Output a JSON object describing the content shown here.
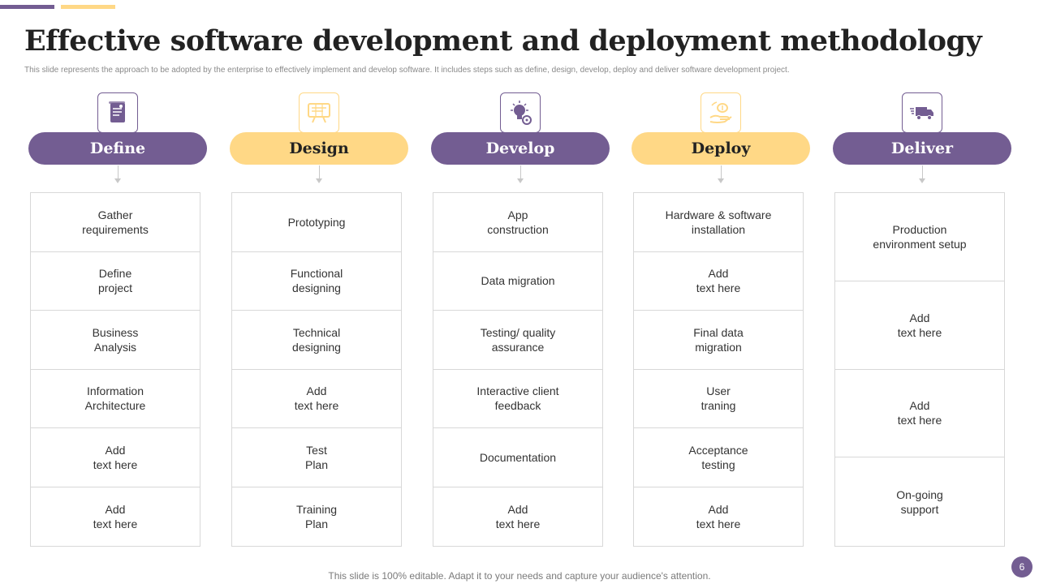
{
  "title": "Effective software development and deployment methodology",
  "subtitle": "This slide represents the approach to be adopted by the enterprise to effectively implement and develop software. It includes steps such as define, design, develop, deploy and deliver software development project.",
  "colors": {
    "purple": "#735d92",
    "yellow": "#ffd886"
  },
  "steps": [
    {
      "label": "Define",
      "icon": "document-list-icon",
      "theme": "purple",
      "items": [
        "Gather\nrequirements",
        "Define\nproject",
        "Business\nAnalysis",
        "Information\nArchitecture",
        "Add\ntext here",
        "Add\ntext here"
      ]
    },
    {
      "label": "Design",
      "icon": "blueprint-icon",
      "theme": "yellow",
      "items": [
        "Prototyping",
        "Functional\ndesigning",
        "Technical\ndesigning",
        "Add\ntext here",
        "Test\nPlan",
        "Training\nPlan"
      ]
    },
    {
      "label": "Develop",
      "icon": "lightbulb-gear-icon",
      "theme": "purple",
      "items": [
        "App\nconstruction",
        "Data migration",
        "Testing/ quality\nassurance",
        "Interactive client\nfeedback",
        "Documentation",
        "Add\ntext here"
      ]
    },
    {
      "label": "Deploy",
      "icon": "hand-coin-icon",
      "theme": "yellow",
      "items": [
        "Hardware & software\ninstallation",
        "Add\ntext here",
        "Final data\nmigration",
        "User\ntraning",
        "Acceptance\ntesting",
        "Add\ntext here"
      ]
    },
    {
      "label": "Deliver",
      "icon": "delivery-truck-icon",
      "theme": "purple",
      "items": [
        "Production\nenvironment setup",
        "Add\ntext here",
        "Add\ntext here",
        "On-going\nsupport"
      ]
    }
  ],
  "footer": "This slide is 100% editable. Adapt it to your needs and capture your audience's attention.",
  "page_number": "6"
}
